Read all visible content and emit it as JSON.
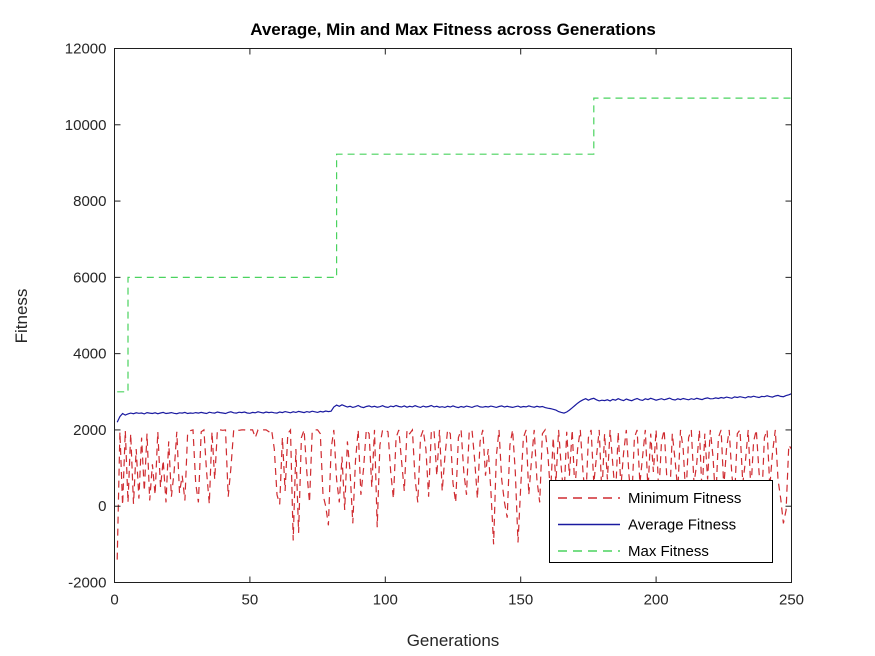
{
  "figure": {
    "background": "#ffffff",
    "axis_color": "#1f1f1f",
    "text_color": "#262626"
  },
  "chart_data": {
    "type": "line",
    "title": "Average, Min and Max Fitness across Generations",
    "xlabel": "Generations",
    "ylabel": "Fitness",
    "xlim": [
      0,
      250
    ],
    "ylim": [
      -2000,
      12000
    ],
    "xticks": [
      0,
      50,
      100,
      150,
      200,
      250
    ],
    "yticks": [
      -2000,
      0,
      2000,
      4000,
      6000,
      8000,
      10000,
      12000
    ],
    "grid": false,
    "box": true,
    "tick_direction": "in",
    "legend_position": "inside-lower-right",
    "series": [
      {
        "name": "Minimum Fitness",
        "color": "#cf2b30",
        "style": "dashed",
        "x_start": 1,
        "x_step": 1,
        "values": [
          -1400,
          1950,
          30,
          1980,
          100,
          1900,
          60,
          1500,
          200,
          1800,
          400,
          1900,
          150,
          1100,
          300,
          1950,
          500,
          1200,
          100,
          1700,
          250,
          900,
          1950,
          350,
          800,
          150,
          1900,
          1980,
          2000,
          600,
          100,
          1950,
          2000,
          900,
          60,
          1950,
          700,
          2000,
          2000,
          1990,
          2000,
          250,
          1000,
          2000,
          2000,
          1990,
          2000,
          2000,
          1980,
          2000,
          2000,
          1800,
          2000,
          2000,
          2000,
          2000,
          1950,
          2000,
          1500,
          300,
          50,
          1800,
          400,
          1900,
          2000,
          -900,
          1500,
          -700,
          1800,
          2000,
          900,
          100,
          1950,
          2000,
          2000,
          1900,
          300,
          0,
          -500,
          1500,
          2000,
          700,
          100,
          1300,
          -100,
          1700,
          900,
          -450,
          1200,
          2000,
          300,
          1000,
          2000,
          1900,
          500,
          2000,
          -550,
          1600,
          2000,
          2000,
          1950,
          900,
          200,
          1800,
          2000,
          1200,
          400,
          2000,
          1900,
          2000,
          700,
          100,
          1800,
          2000,
          1500,
          250,
          1950,
          2000,
          800,
          2000,
          400,
          1300,
          2000,
          1900,
          600,
          100,
          1800,
          2000,
          900,
          300,
          1950,
          2000,
          1200,
          200,
          1700,
          2000,
          800,
          1500,
          400,
          -1000,
          1300,
          2000,
          700,
          100,
          -300,
          1600,
          2000,
          900,
          -950,
          500,
          1800,
          2000,
          300,
          1200,
          2000,
          700,
          100,
          1900,
          2000,
          1400,
          300,
          1800,
          600,
          2000,
          1000,
          200,
          1950,
          800,
          2000,
          400,
          1500,
          2000,
          900,
          100,
          1800,
          2000,
          600,
          1300,
          2000,
          300,
          1900,
          700,
          2000,
          1100,
          200,
          1950,
          500,
          1400,
          2000,
          800,
          100,
          1800,
          2000,
          600,
          1300,
          2000,
          400,
          1900,
          900,
          2000,
          300,
          1700,
          2000,
          700,
          100,
          1900,
          1200,
          400,
          2000,
          1500,
          200,
          1800,
          2000,
          600,
          1100,
          2000,
          300,
          1900,
          700,
          2000,
          1300,
          100,
          1800,
          2000,
          500,
          1500,
          2000,
          800,
          200,
          1900,
          2000,
          600,
          1200,
          2000,
          400,
          1700,
          2000,
          900,
          100,
          1800,
          2000,
          500,
          1400,
          2000,
          700,
          200,
          -450,
          -100,
          1600,
          1500
        ]
      },
      {
        "name": "Average Fitness",
        "color": "#1a1aa0",
        "style": "solid",
        "x_start": 1,
        "x_step": 1,
        "values": [
          2200,
          2350,
          2430,
          2390,
          2420,
          2440,
          2425,
          2450,
          2435,
          2445,
          2420,
          2455,
          2440,
          2430,
          2450,
          2425,
          2445,
          2460,
          2430,
          2440,
          2455,
          2435,
          2425,
          2450,
          2440,
          2460,
          2430,
          2445,
          2435,
          2455,
          2440,
          2460,
          2445,
          2430,
          2465,
          2450,
          2440,
          2470,
          2455,
          2445,
          2430,
          2460,
          2475,
          2450,
          2440,
          2465,
          2455,
          2470,
          2445,
          2435,
          2460,
          2450,
          2475,
          2460,
          2445,
          2470,
          2455,
          2465,
          2450,
          2440,
          2470,
          2455,
          2480,
          2465,
          2450,
          2475,
          2460,
          2485,
          2470,
          2455,
          2480,
          2465,
          2490,
          2475,
          2460,
          2485,
          2470,
          2495,
          2480,
          2490,
          2600,
          2650,
          2620,
          2660,
          2630,
          2600,
          2620,
          2590,
          2610,
          2640,
          2605,
          2585,
          2615,
          2630,
          2600,
          2620,
          2595,
          2610,
          2635,
          2605,
          2590,
          2625,
          2610,
          2640,
          2615,
          2600,
          2630,
          2595,
          2620,
          2605,
          2635,
          2610,
          2590,
          2625,
          2600,
          2615,
          2640,
          2605,
          2620,
          2595,
          2610,
          2590,
          2620,
          2600,
          2630,
          2605,
          2585,
          2615,
          2595,
          2625,
          2610,
          2590,
          2620,
          2635,
          2605,
          2595,
          2615,
          2600,
          2625,
          2610,
          2590,
          2615,
          2630,
          2600,
          2620,
          2605,
          2590,
          2610,
          2625,
          2595,
          2615,
          2605,
          2630,
          2610,
          2595,
          2620,
          2600,
          2615,
          2585,
          2570,
          2560,
          2540,
          2520,
          2480,
          2460,
          2440,
          2470,
          2520,
          2580,
          2640,
          2700,
          2750,
          2790,
          2820,
          2780,
          2810,
          2830,
          2790,
          2760,
          2780,
          2770,
          2790,
          2760,
          2800,
          2780,
          2820,
          2790,
          2770,
          2810,
          2785,
          2765,
          2800,
          2825,
          2790,
          2775,
          2815,
          2795,
          2830,
          2805,
          2780,
          2800,
          2820,
          2790,
          2810,
          2835,
          2800,
          2785,
          2815,
          2795,
          2825,
          2805,
          2790,
          2820,
          2800,
          2830,
          2810,
          2795,
          2825,
          2840,
          2815,
          2820,
          2840,
          2825,
          2850,
          2835,
          2860,
          2845,
          2830,
          2865,
          2850,
          2870,
          2855,
          2840,
          2875,
          2860,
          2885,
          2865,
          2850,
          2880,
          2870,
          2895,
          2875,
          2860,
          2890,
          2905,
          2880,
          2870,
          2900,
          2920,
          2950
        ]
      },
      {
        "name": "Max Fitness",
        "color": "#4ad35f",
        "style": "dashed",
        "points": [
          [
            1,
            3000
          ],
          [
            5,
            3000
          ],
          [
            5,
            6000
          ],
          [
            82,
            6000
          ],
          [
            82,
            9230
          ],
          [
            177,
            9230
          ],
          [
            177,
            10700
          ],
          [
            250,
            10700
          ]
        ]
      }
    ]
  }
}
